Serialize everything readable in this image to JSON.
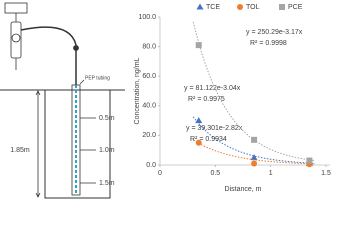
{
  "diagram": {
    "tubing_label": "PEP tubing",
    "total_depth": "1.85m",
    "depths": [
      "0.5m",
      "1.0m",
      "1.5m"
    ]
  },
  "chart_data": {
    "type": "scatter",
    "x_label": "Distance, m",
    "y_label": "Concentration, ng/mL",
    "xlim": [
      0,
      1.5
    ],
    "xticks": [
      0,
      0.5,
      1,
      1.5
    ],
    "ylim": [
      0,
      100
    ],
    "yticks": [
      {
        "value": 0,
        "label": "0.0"
      },
      {
        "value": 20,
        "label": "20.0"
      },
      {
        "value": 40,
        "label": "40.0"
      },
      {
        "value": 60,
        "label": "60.0"
      },
      {
        "value": 80,
        "label": "80.0"
      },
      {
        "value": 100,
        "label": "100.0"
      }
    ],
    "grid": false,
    "legend": "top",
    "x": [
      0.35,
      0.85,
      1.35
    ],
    "series": [
      {
        "name": "TCE",
        "color": "#4472c4",
        "marker": "triangle",
        "values": [
          30,
          5,
          1
        ],
        "trendline": {
          "a": 81.122,
          "b": -3.04,
          "label": "y = 81.122e-3.04x",
          "r2_label": "R² = 0.9975"
        }
      },
      {
        "name": "TOL",
        "color": "#ed7d31",
        "marker": "circle",
        "values": [
          15,
          1,
          0.5
        ],
        "trendline": {
          "a": 39.301,
          "b": -2.82,
          "label": "y = 39.301e-2.82x",
          "r2_label": "R² = 0.9934"
        }
      },
      {
        "name": "PCE",
        "color": "#a5a5a5",
        "marker": "square",
        "values": [
          81,
          17,
          3
        ],
        "trendline": {
          "a": 250.29,
          "b": -3.17,
          "label": "y = 250.29e-3.17x",
          "r2_label": "R² = 0.9998"
        }
      }
    ]
  }
}
